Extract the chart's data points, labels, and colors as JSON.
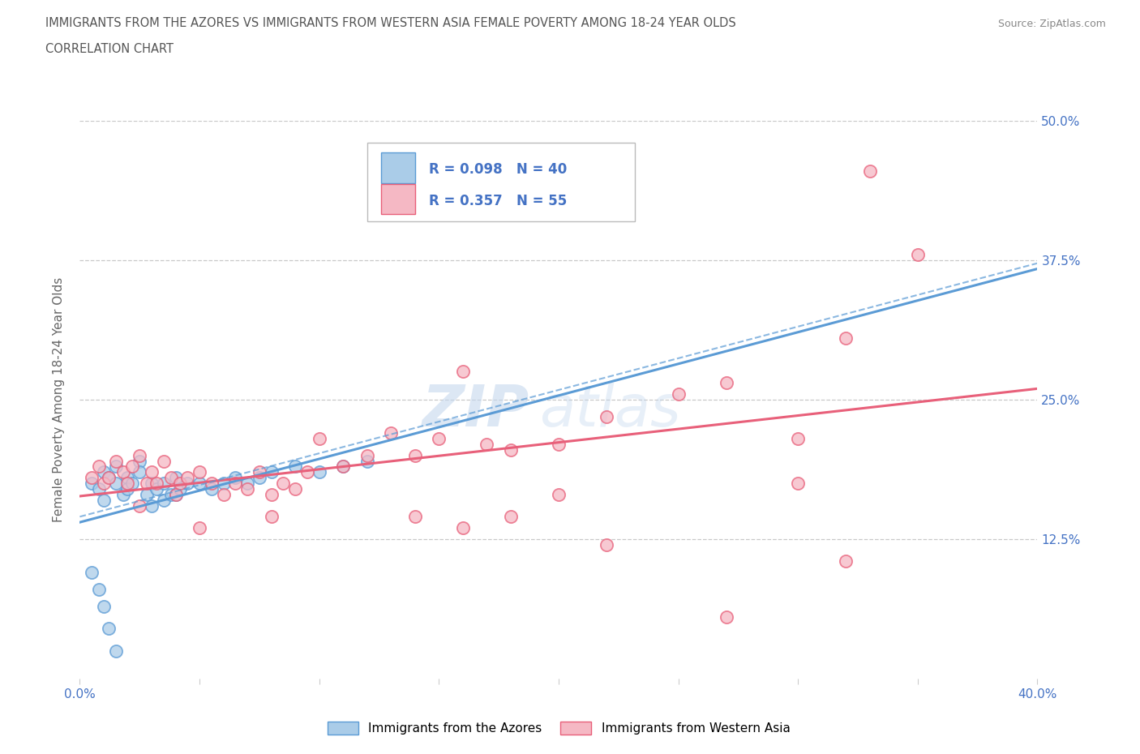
{
  "title_line1": "IMMIGRANTS FROM THE AZORES VS IMMIGRANTS FROM WESTERN ASIA FEMALE POVERTY AMONG 18-24 YEAR OLDS",
  "title_line2": "CORRELATION CHART",
  "source": "Source: ZipAtlas.com",
  "ylabel": "Female Poverty Among 18-24 Year Olds",
  "watermark_zip": "ZIP",
  "watermark_atlas": "atlas",
  "series1_label": "Immigrants from the Azores",
  "series2_label": "Immigrants from Western Asia",
  "series1_R": "0.098",
  "series1_N": "40",
  "series2_R": "0.357",
  "series2_N": "55",
  "series1_color": "#aacce8",
  "series2_color": "#f5b8c4",
  "trend1_color": "#5b9bd5",
  "trend2_color": "#e8607a",
  "xlim": [
    0.0,
    0.4
  ],
  "ylim": [
    0.0,
    0.5
  ],
  "xticks": [
    0.0,
    0.05,
    0.1,
    0.15,
    0.2,
    0.25,
    0.3,
    0.35,
    0.4
  ],
  "yticks": [
    0.0,
    0.125,
    0.25,
    0.375,
    0.5
  ],
  "grid_color": "#c8c8c8",
  "background_color": "#ffffff",
  "series1_x": [
    0.005,
    0.008,
    0.01,
    0.01,
    0.012,
    0.015,
    0.015,
    0.018,
    0.02,
    0.02,
    0.022,
    0.025,
    0.025,
    0.028,
    0.03,
    0.03,
    0.032,
    0.035,
    0.035,
    0.038,
    0.04,
    0.04,
    0.042,
    0.045,
    0.05,
    0.055,
    0.06,
    0.065,
    0.07,
    0.075,
    0.08,
    0.09,
    0.1,
    0.11,
    0.12,
    0.005,
    0.008,
    0.01,
    0.012,
    0.015
  ],
  "series1_y": [
    0.175,
    0.17,
    0.185,
    0.16,
    0.18,
    0.19,
    0.175,
    0.165,
    0.18,
    0.17,
    0.175,
    0.195,
    0.185,
    0.165,
    0.175,
    0.155,
    0.17,
    0.175,
    0.16,
    0.165,
    0.18,
    0.165,
    0.17,
    0.175,
    0.175,
    0.17,
    0.175,
    0.18,
    0.175,
    0.18,
    0.185,
    0.19,
    0.185,
    0.19,
    0.195,
    0.095,
    0.08,
    0.065,
    0.045,
    0.025
  ],
  "series2_x": [
    0.005,
    0.008,
    0.01,
    0.012,
    0.015,
    0.018,
    0.02,
    0.022,
    0.025,
    0.028,
    0.03,
    0.032,
    0.035,
    0.038,
    0.04,
    0.042,
    0.045,
    0.05,
    0.055,
    0.06,
    0.065,
    0.07,
    0.075,
    0.08,
    0.085,
    0.09,
    0.095,
    0.1,
    0.11,
    0.12,
    0.13,
    0.14,
    0.15,
    0.16,
    0.17,
    0.18,
    0.2,
    0.22,
    0.25,
    0.27,
    0.3,
    0.32,
    0.33,
    0.35,
    0.14,
    0.16,
    0.18,
    0.2,
    0.22,
    0.27,
    0.3,
    0.32,
    0.025,
    0.05,
    0.08
  ],
  "series2_y": [
    0.18,
    0.19,
    0.175,
    0.18,
    0.195,
    0.185,
    0.175,
    0.19,
    0.2,
    0.175,
    0.185,
    0.175,
    0.195,
    0.18,
    0.165,
    0.175,
    0.18,
    0.185,
    0.175,
    0.165,
    0.175,
    0.17,
    0.185,
    0.165,
    0.175,
    0.17,
    0.185,
    0.215,
    0.19,
    0.2,
    0.22,
    0.2,
    0.215,
    0.275,
    0.21,
    0.205,
    0.21,
    0.235,
    0.255,
    0.265,
    0.215,
    0.305,
    0.455,
    0.38,
    0.145,
    0.135,
    0.145,
    0.165,
    0.12,
    0.055,
    0.175,
    0.105,
    0.155,
    0.135,
    0.145
  ]
}
